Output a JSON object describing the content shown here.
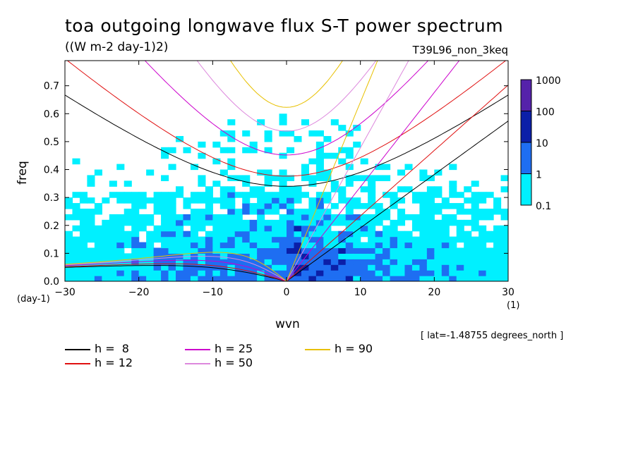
{
  "header": {
    "title": "toa outgoing longwave flux S-T power spectrum",
    "units": "((W m-2 day-1)2)",
    "run": "T39L96_non_3keq"
  },
  "axes": {
    "ylabel": "freq",
    "xlabel": "wvn",
    "yunit": "(day-1)",
    "xunit": "(1)"
  },
  "note": "[ lat=-1.48755 degrees_north ]",
  "colorbar": {
    "labels": [
      "1000",
      "100",
      "10",
      "1",
      "0.1"
    ],
    "colors": [
      "#5522aa",
      "#0b1fa8",
      "#1e6ef2",
      "#00f0ff"
    ]
  },
  "legend": [
    {
      "label": "h =  8",
      "color": "#000000"
    },
    {
      "label": "h = 12",
      "color": "#e01010"
    },
    {
      "label": "h = 25",
      "color": "#cc00cc"
    },
    {
      "label": "h = 50",
      "color": "#dd88dd"
    },
    {
      "label": "h = 90",
      "color": "#e8c000"
    }
  ],
  "chart_data": {
    "type": "heatmap",
    "title": "toa outgoing longwave flux S-T power spectrum",
    "subtitle": "((W m-2 day-1)2)",
    "xlabel": "wvn",
    "ylabel": "freq",
    "xlim": [
      -30,
      30
    ],
    "ylim": [
      0,
      0.79
    ],
    "xticks": [
      -30,
      -20,
      -10,
      0,
      10,
      20,
      30
    ],
    "yticks": [
      0.0,
      0.1,
      0.2,
      0.3,
      0.4,
      0.5,
      0.6,
      0.7
    ],
    "color_levels": [
      0.1,
      1,
      10,
      100,
      1000
    ],
    "dispersion_curves": {
      "equivalent_depths": [
        8,
        12,
        25,
        50,
        90
      ],
      "y_minimum_freq_at_k0": {
        "h=8": 0.33,
        "h=12": 0.37,
        "h=25": 0.45,
        "h=50": 0.525,
        "h=90": 0.61
      }
    }
  }
}
